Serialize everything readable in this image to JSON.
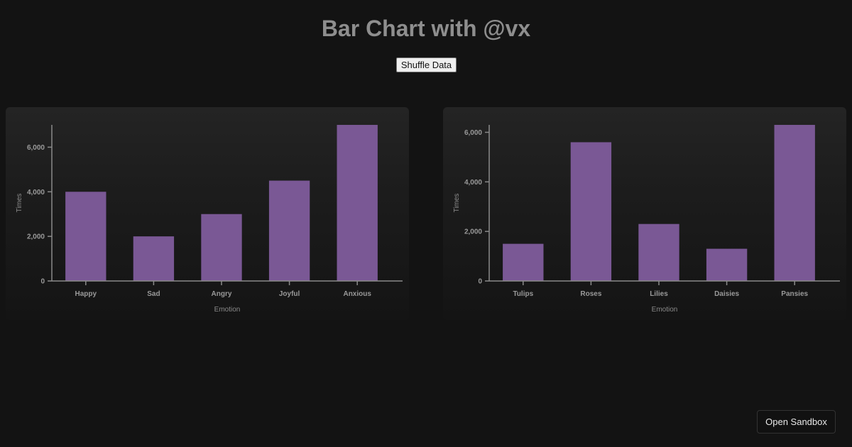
{
  "page": {
    "title": "Bar Chart with @vx",
    "shuffle_label": "Shuffle Data",
    "sandbox_label": "Open Sandbox"
  },
  "colors": {
    "background": "#131313",
    "bar": "#7a5895",
    "axis": "#8a8a8a"
  },
  "chart_data": [
    {
      "type": "bar",
      "title": "",
      "categories": [
        "Happy",
        "Sad",
        "Angry",
        "Joyful",
        "Anxious"
      ],
      "values": [
        4000,
        2000,
        3000,
        4500,
        7000
      ],
      "xlabel": "Emotion",
      "ylabel": "Times",
      "ylim": [
        0,
        7000
      ],
      "yticks": [
        0,
        2000,
        4000,
        6000
      ],
      "ytick_labels": [
        "0",
        "2,000",
        "4,000",
        "6,000"
      ],
      "grid": false
    },
    {
      "type": "bar",
      "title": "",
      "categories": [
        "Tulips",
        "Roses",
        "Lilies",
        "Daisies",
        "Pansies"
      ],
      "values": [
        1500,
        5600,
        2300,
        1300,
        6300
      ],
      "xlabel": "Emotion",
      "ylabel": "Times",
      "ylim": [
        0,
        6300
      ],
      "yticks": [
        0,
        2000,
        4000,
        6000
      ],
      "ytick_labels": [
        "0",
        "2,000",
        "4,000",
        "6,000"
      ],
      "grid": false
    }
  ]
}
